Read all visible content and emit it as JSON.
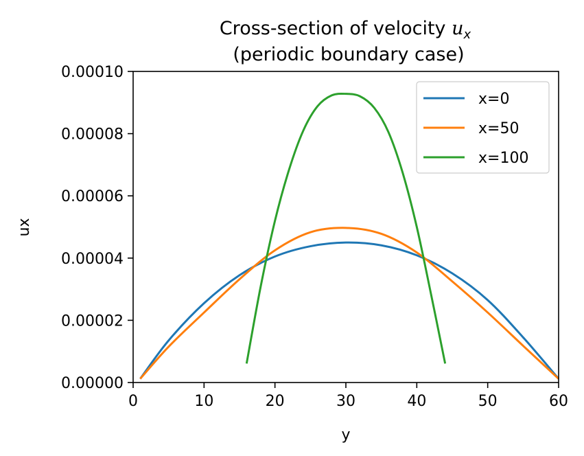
{
  "chart_data": {
    "type": "line",
    "title_line1_main": "Cross-section of velocity ",
    "title_line1_math": "u",
    "title_line1_sub": "x",
    "title_line2": "(periodic boundary case)",
    "xlabel": "y",
    "ylabel": "ux",
    "xlim": [
      0,
      60
    ],
    "ylim": [
      0,
      0.0001
    ],
    "xticks": [
      0,
      10,
      20,
      30,
      40,
      50,
      60
    ],
    "xtick_labels": [
      "0",
      "10",
      "20",
      "30",
      "40",
      "50",
      "60"
    ],
    "yticks": [
      0,
      2e-05,
      4e-05,
      6e-05,
      8e-05,
      0.0001
    ],
    "ytick_labels": [
      "0.00000",
      "0.00002",
      "0.00004",
      "0.00006",
      "0.00008",
      "0.00010"
    ],
    "grid": false,
    "legend_position": "top-right",
    "series": [
      {
        "name": "x=0",
        "color": "#1f77b4",
        "x": [
          1,
          5,
          10,
          15,
          20,
          25,
          30,
          35,
          40,
          45,
          50,
          55,
          60
        ],
        "y": [
          1.2e-06,
          1.35e-05,
          2.55e-05,
          3.45e-05,
          4.05e-05,
          4.38e-05,
          4.5e-05,
          4.41e-05,
          4.09e-05,
          3.51e-05,
          2.65e-05,
          1.45e-05,
          1.2e-06
        ]
      },
      {
        "name": "x=50",
        "color": "#ff7f0e",
        "x": [
          1,
          5,
          10,
          15,
          20,
          25,
          30,
          35,
          40,
          45,
          50,
          55,
          60
        ],
        "y": [
          1.2e-06,
          1.15e-05,
          2.25e-05,
          3.32e-05,
          4.25e-05,
          4.83e-05,
          4.97e-05,
          4.78e-05,
          4.18e-05,
          3.25e-05,
          2.25e-05,
          1.18e-05,
          1.2e-06
        ]
      },
      {
        "name": "x=100",
        "color": "#2ca02c",
        "x": [
          16,
          18,
          20,
          22,
          24,
          26,
          28,
          30,
          32,
          34,
          36,
          38,
          40,
          42,
          44
        ],
        "y": [
          6.1e-06,
          3.1e-05,
          5.2e-05,
          6.85e-05,
          8.1e-05,
          8.88e-05,
          9.23e-05,
          9.28e-05,
          9.2e-05,
          8.83e-05,
          8.05e-05,
          6.75e-05,
          5e-05,
          2.85e-05,
          6.1e-06
        ]
      }
    ]
  }
}
